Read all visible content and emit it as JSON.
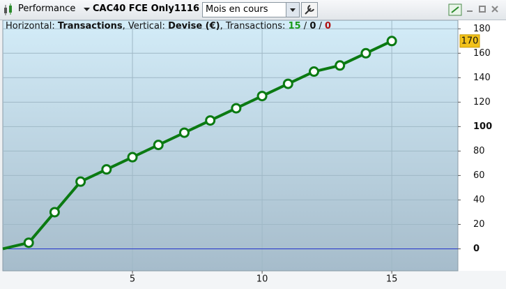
{
  "toolbar": {
    "module": "Performance",
    "instrument": "CAC40 FCE Only1116",
    "period": "Mois en cours"
  },
  "info": {
    "horizontal_label": "Horizontal:",
    "horizontal_value": "Transactions",
    "vertical_label": ", Vertical:",
    "vertical_value": "Devise (€)",
    "count_label": ", Transactions:",
    "separator": "/",
    "counts": [
      15,
      0,
      0
    ]
  },
  "chart_data": {
    "type": "line",
    "x": [
      0,
      1,
      2,
      3,
      4,
      5,
      6,
      7,
      8,
      9,
      10,
      11,
      12,
      13,
      14,
      15
    ],
    "series": [
      {
        "name": "Performance",
        "color": "#0b7a12",
        "values": [
          0,
          5,
          30,
          55,
          65,
          75,
          85,
          95,
          105,
          115,
          125,
          135,
          145,
          150,
          160,
          170
        ]
      }
    ],
    "xlim": [
      0,
      17.55
    ],
    "ylim": [
      -18,
      187
    ],
    "xticks": [
      5,
      10,
      15
    ],
    "yticks": [
      0,
      20,
      40,
      60,
      80,
      100,
      120,
      140,
      160,
      180
    ],
    "zero_line_color": "#2233cc",
    "grid": true
  }
}
